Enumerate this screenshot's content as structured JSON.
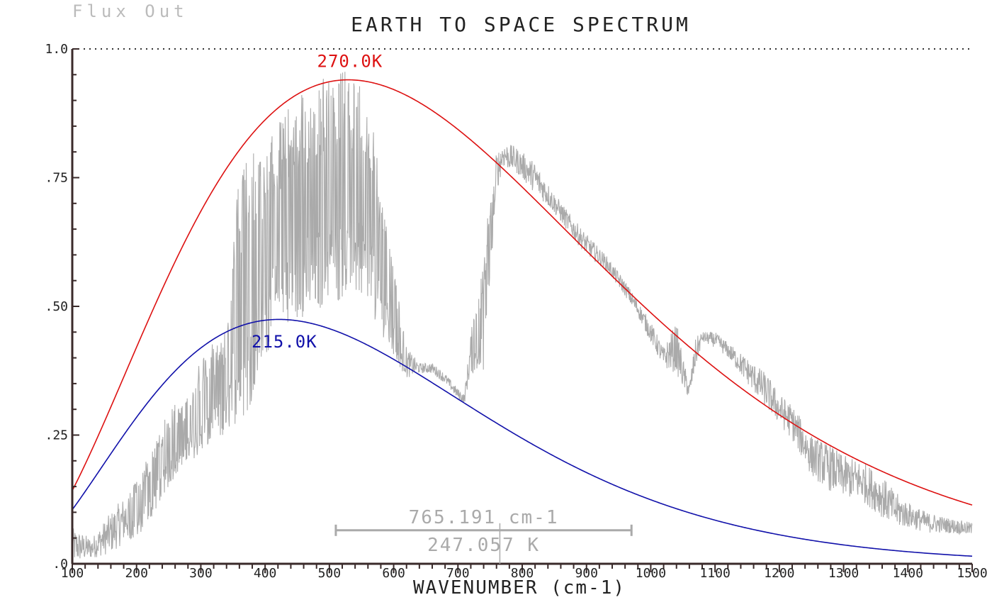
{
  "corner_label": "Flux Out",
  "chart_data": {
    "type": "line",
    "title": "EARTH TO SPACE SPECTRUM",
    "xlabel": "WAVENUMBER (cm-1)",
    "ylabel": "",
    "xlim": [
      100,
      1500
    ],
    "ylim": [
      0,
      1.0
    ],
    "x_ticks": [
      100,
      200,
      300,
      400,
      500,
      600,
      700,
      800,
      900,
      1000,
      1100,
      1200,
      1300,
      1400,
      1500
    ],
    "x_tick_labels": [
      "100",
      "200",
      "300",
      "400",
      "500",
      "600",
      "700",
      "800",
      "900",
      "1000",
      "1100",
      "1200",
      "1300",
      "1400",
      "1500"
    ],
    "y_ticks": [
      0,
      0.25,
      0.5,
      0.75,
      1.0
    ],
    "y_tick_labels": [
      ".0",
      ".25",
      ".50",
      ".75",
      "1.0"
    ],
    "top_reference_line": 1.0,
    "series": [
      {
        "label": "270.0K",
        "kind": "planck",
        "temperature_k": 270.0,
        "color": "#dd1111",
        "peak_value": 0.94,
        "label_position": [
          532,
          0.965
        ]
      },
      {
        "label": "215.0K",
        "kind": "planck",
        "temperature_k": 215.0,
        "color": "#1111aa",
        "label_position": [
          430,
          0.42
        ]
      },
      {
        "label": "",
        "kind": "measured",
        "color": "#aaaaaa",
        "envelope": [
          [
            100,
            0.0,
            0.07
          ],
          [
            130,
            0.01,
            0.05
          ],
          [
            160,
            0.02,
            0.1
          ],
          [
            180,
            0.04,
            0.13
          ],
          [
            200,
            0.05,
            0.17
          ],
          [
            220,
            0.08,
            0.21
          ],
          [
            240,
            0.13,
            0.28
          ],
          [
            260,
            0.17,
            0.31
          ],
          [
            280,
            0.2,
            0.33
          ],
          [
            300,
            0.21,
            0.4
          ],
          [
            320,
            0.23,
            0.43
          ],
          [
            340,
            0.25,
            0.46
          ],
          [
            350,
            0.27,
            0.7
          ],
          [
            370,
            0.28,
            0.78
          ],
          [
            380,
            0.32,
            0.83
          ],
          [
            400,
            0.4,
            0.8
          ],
          [
            420,
            0.45,
            0.86
          ],
          [
            440,
            0.47,
            0.89
          ],
          [
            460,
            0.48,
            0.92
          ],
          [
            480,
            0.49,
            0.94
          ],
          [
            500,
            0.5,
            0.95
          ],
          [
            520,
            0.51,
            0.96
          ],
          [
            540,
            0.52,
            0.95
          ],
          [
            560,
            0.5,
            0.92
          ],
          [
            580,
            0.45,
            0.75
          ],
          [
            600,
            0.4,
            0.58
          ],
          [
            620,
            0.36,
            0.42
          ],
          [
            640,
            0.37,
            0.39
          ],
          [
            660,
            0.37,
            0.39
          ],
          [
            680,
            0.35,
            0.37
          ],
          [
            700,
            0.32,
            0.34
          ],
          [
            710,
            0.31,
            0.33
          ],
          [
            720,
            0.37,
            0.45
          ],
          [
            730,
            0.37,
            0.52
          ],
          [
            740,
            0.37,
            0.6
          ],
          [
            750,
            0.55,
            0.72
          ],
          [
            760,
            0.72,
            0.8
          ],
          [
            770,
            0.77,
            0.82
          ],
          [
            790,
            0.76,
            0.81
          ],
          [
            820,
            0.72,
            0.78
          ],
          [
            850,
            0.68,
            0.72
          ],
          [
            880,
            0.63,
            0.67
          ],
          [
            900,
            0.6,
            0.64
          ],
          [
            930,
            0.57,
            0.6
          ],
          [
            960,
            0.52,
            0.55
          ],
          [
            980,
            0.48,
            0.51
          ],
          [
            1000,
            0.43,
            0.47
          ],
          [
            1020,
            0.38,
            0.42
          ],
          [
            1040,
            0.37,
            0.47
          ],
          [
            1050,
            0.34,
            0.4
          ],
          [
            1060,
            0.32,
            0.35
          ],
          [
            1070,
            0.38,
            0.44
          ],
          [
            1080,
            0.43,
            0.45
          ],
          [
            1100,
            0.42,
            0.45
          ],
          [
            1120,
            0.4,
            0.43
          ],
          [
            1150,
            0.35,
            0.4
          ],
          [
            1180,
            0.3,
            0.37
          ],
          [
            1200,
            0.27,
            0.33
          ],
          [
            1220,
            0.24,
            0.31
          ],
          [
            1250,
            0.17,
            0.25
          ],
          [
            1280,
            0.14,
            0.23
          ],
          [
            1300,
            0.13,
            0.21
          ],
          [
            1330,
            0.12,
            0.2
          ],
          [
            1360,
            0.09,
            0.17
          ],
          [
            1380,
            0.07,
            0.14
          ],
          [
            1400,
            0.07,
            0.12
          ],
          [
            1430,
            0.06,
            0.1
          ],
          [
            1460,
            0.06,
            0.09
          ],
          [
            1500,
            0.055,
            0.08
          ]
        ]
      }
    ],
    "cursor": {
      "wavenumber_text": "765.191 cm-1",
      "temperature_text": "247.057 K",
      "x": 765.191,
      "bar_from": 510,
      "bar_to": 970,
      "y": 0.065
    }
  }
}
